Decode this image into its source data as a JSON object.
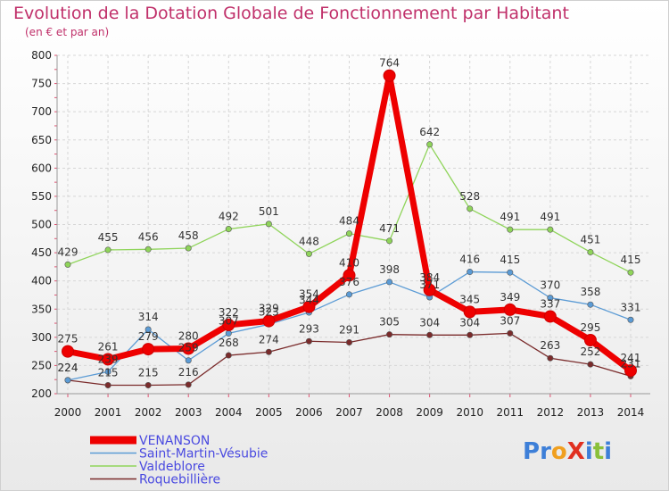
{
  "chart_data": {
    "type": "line",
    "title": "Evolution de la Dotation Globale de Fonctionnement par Habitant",
    "subtitle": "(en € et par an)",
    "xlabel": "",
    "ylabel": "",
    "ylim": [
      200,
      800
    ],
    "yticks": [
      200,
      250,
      300,
      350,
      400,
      450,
      500,
      550,
      600,
      650,
      700,
      750,
      800
    ],
    "categories": [
      "2000",
      "2001",
      "2002",
      "2003",
      "2004",
      "2005",
      "2006",
      "2007",
      "2008",
      "2009",
      "2010",
      "2011",
      "2012",
      "2013",
      "2014"
    ],
    "series": [
      {
        "name": "VENANSON",
        "color": "#ee0000",
        "values": [
          275,
          261,
          279,
          280,
          322,
          329,
          354,
          410,
          764,
          384,
          345,
          349,
          337,
          295,
          241
        ]
      },
      {
        "name": "Saint-Martin-Vésubie",
        "color": "#5b9bd5",
        "values": [
          224,
          239,
          314,
          259,
          307,
          323,
          344,
          376,
          398,
          371,
          416,
          415,
          370,
          358,
          331
        ]
      },
      {
        "name": "Valdeblore",
        "color": "#8fd45a",
        "values": [
          429,
          455,
          456,
          458,
          492,
          501,
          448,
          484,
          471,
          642,
          528,
          491,
          491,
          451,
          415
        ]
      },
      {
        "name": "Roquebillière",
        "color": "#7a2b2b",
        "values": [
          224,
          215,
          215,
          216,
          268,
          274,
          293,
          291,
          305,
          304,
          304,
          307,
          263,
          252,
          231
        ]
      }
    ],
    "legend_position": "bottom-left"
  },
  "logo": {
    "text": "ProXiti"
  }
}
